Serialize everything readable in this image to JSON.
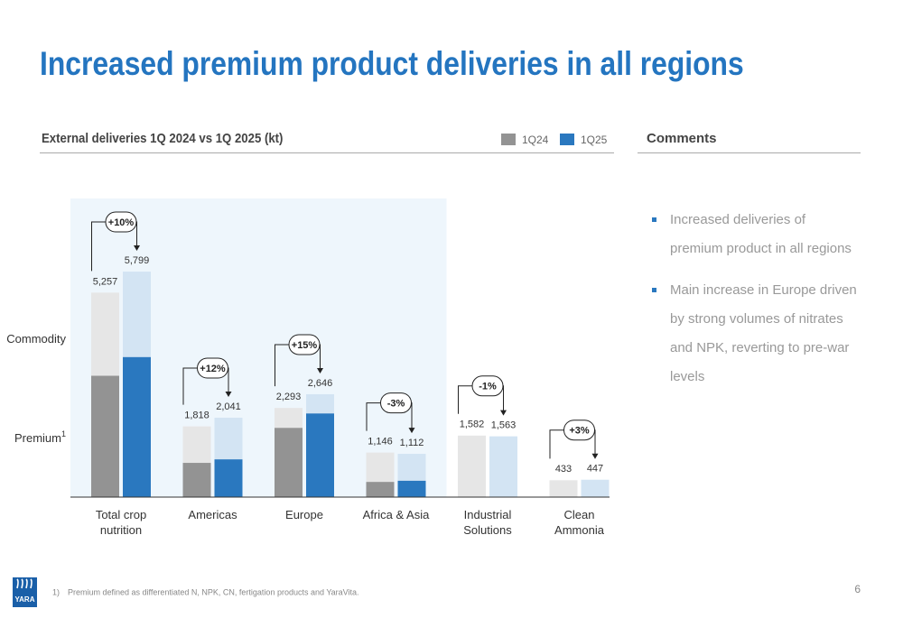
{
  "slide": {
    "title": "Increased premium product deliveries in all regions",
    "comments_header": "Comments",
    "comments": [
      "Increased deliveries of premium product in all regions",
      "Main increase in Europe driven by strong volumes of nitrates and NPK, reverting to pre-war levels"
    ],
    "footnote_marker": "1)",
    "footnote": "Premium defined as differentiated N, NPK, CN, fertigation products and YaraVita.",
    "page_number": "6",
    "logo": "YARA"
  },
  "chart_data": {
    "type": "bar",
    "title": "External deliveries 1Q 2024 vs 1Q 2025 (kt)",
    "categories": [
      "Total crop\nnutrition",
      "Americas",
      "Europe",
      "Africa & Asia",
      "Industrial\nSolutions",
      "Clean\nAmmonia"
    ],
    "y_labels": [
      {
        "text": "Commodity"
      },
      {
        "text": "Premium",
        "sup": "1"
      }
    ],
    "ylim": [
      0,
      5800
    ],
    "series": [
      {
        "name": "1Q24",
        "color": "#939393",
        "commodity_color": "#e6e6e6",
        "values": [
          5257,
          1818,
          2293,
          1146,
          1582,
          433
        ],
        "value_labels": [
          "5,257",
          "1,818",
          "2,293",
          "1,146",
          "1,582",
          "433"
        ],
        "premium": [
          3120,
          880,
          1780,
          390,
          null,
          null
        ]
      },
      {
        "name": "1Q25",
        "color": "#2a78bf",
        "commodity_color": "#d3e4f3",
        "values": [
          5799,
          2041,
          2646,
          1112,
          1563,
          447
        ],
        "value_labels": [
          "5,799",
          "2,041",
          "2,646",
          "1,112",
          "1,563",
          "447"
        ],
        "premium": [
          3600,
          970,
          2150,
          420,
          null,
          null
        ]
      }
    ],
    "changes": [
      "+10%",
      "+12%",
      "+15%",
      "-3%",
      "-1%",
      "+3%"
    ],
    "highlight_color": "#eef6fc"
  }
}
